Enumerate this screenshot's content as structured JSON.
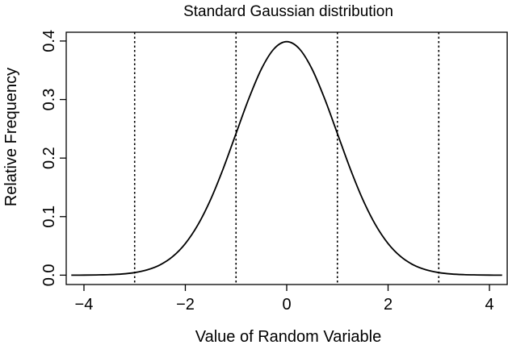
{
  "chart_data": {
    "type": "line",
    "title": "Standard Gaussian distribution",
    "xlabel": "Value of Random Variable",
    "ylabel": "Relative Frequency",
    "xlim": [
      -4.35,
      4.35
    ],
    "ylim": [
      -0.016,
      0.415
    ],
    "x_ticks": [
      -4,
      -2,
      0,
      2,
      4
    ],
    "x_tick_labels": [
      "−4",
      "−2",
      "0",
      "2",
      "4"
    ],
    "y_ticks": [
      0.0,
      0.1,
      0.2,
      0.3,
      0.4
    ],
    "y_tick_labels": [
      "0.0",
      "0.1",
      "0.2",
      "0.3",
      "0.4"
    ],
    "grid": false,
    "series": [
      {
        "x": [
          -4.25,
          -4.0,
          -3.75,
          -3.5,
          -3.25,
          -3.0,
          -2.75,
          -2.5,
          -2.25,
          -2.0,
          -1.75,
          -1.5,
          -1.25,
          -1.0,
          -0.75,
          -0.5,
          -0.25,
          0.0,
          0.25,
          0.5,
          0.75,
          1.0,
          1.25,
          1.5,
          1.75,
          2.0,
          2.25,
          2.5,
          2.75,
          3.0,
          3.25,
          3.5,
          3.75,
          4.0,
          4.25
        ],
        "y": [
          0.0,
          0.0001,
          0.0004,
          0.0009,
          0.002,
          0.0044,
          0.0091,
          0.0175,
          0.0317,
          0.054,
          0.0863,
          0.1295,
          0.1826,
          0.242,
          0.3011,
          0.3521,
          0.3867,
          0.3989,
          0.3867,
          0.3521,
          0.3011,
          0.242,
          0.1826,
          0.1295,
          0.0863,
          0.054,
          0.0317,
          0.0175,
          0.0091,
          0.0044,
          0.002,
          0.0009,
          0.0004,
          0.0001,
          0.0
        ]
      }
    ],
    "vertical_lines": {
      "x": [
        -3,
        -1,
        1,
        3
      ],
      "style": "dotted"
    },
    "colors": {
      "line": "#000000",
      "axis": "#000000"
    }
  }
}
